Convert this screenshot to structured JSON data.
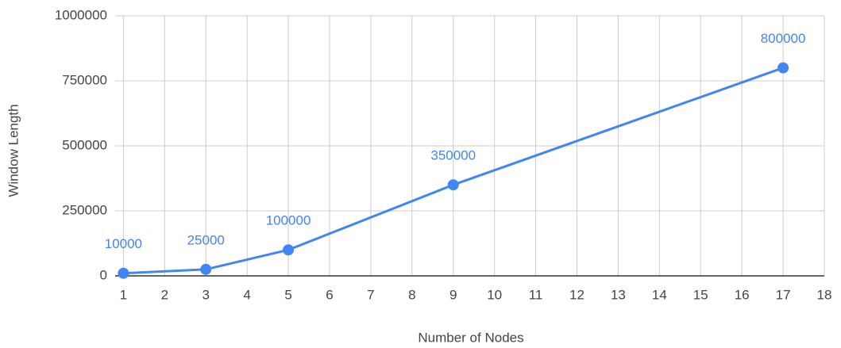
{
  "chart_data": {
    "type": "line",
    "x_label": "Number of Nodes",
    "y_label": "Window Length",
    "x": [
      1,
      3,
      5,
      9,
      17
    ],
    "series": [
      {
        "name": "Window Length",
        "color": "#4285f4",
        "values": [
          10000,
          25000,
          100000,
          350000,
          800000
        ]
      }
    ],
    "xlim": [
      0.8,
      18
    ],
    "xticks": [
      1,
      2,
      3,
      4,
      5,
      6,
      7,
      8,
      9,
      10,
      11,
      12,
      13,
      14,
      15,
      16,
      17,
      18
    ],
    "ylim": [
      0,
      1000000
    ],
    "yticks": [
      0,
      250000,
      500000,
      750000,
      1000000
    ],
    "grid": true,
    "data_labels": true
  }
}
